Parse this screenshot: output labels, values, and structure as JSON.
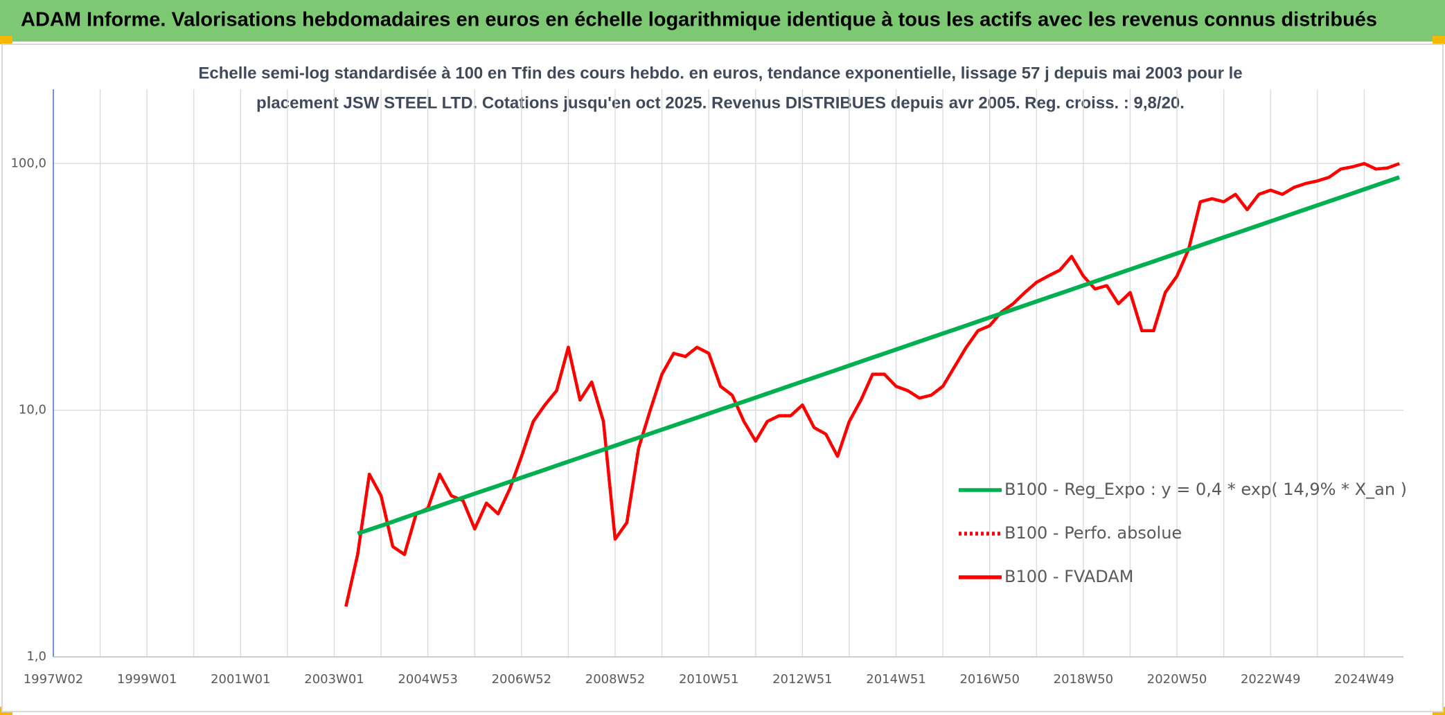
{
  "chart_data": {
    "type": "line",
    "title": "ADAM Informe. Valorisations hebdomadaires en euros en échelle logarithmique identique à tous les actifs avec les revenus connus distribués",
    "subtitle": [
      "Echelle semi-log standardisée à 100 en Tfin des cours hebdo. en euros, tendance exponentielle, lissage 57 j depuis mai 2003 pour le",
      "placement JSW STEEL LTD. Cotations jusqu'en oct 2025. Revenus DISTRIBUES depuis avr 2005. Reg. croiss. : 9,8/20."
    ],
    "categories": [
      "1997W02",
      null,
      null,
      null,
      null,
      null,
      null,
      null,
      "1999W01",
      null,
      null,
      null,
      null,
      null,
      null,
      null,
      "2001W01",
      null,
      null,
      null,
      null,
      null,
      null,
      null,
      "2003W01",
      null,
      null,
      null,
      null,
      null,
      null,
      null,
      "2004W53",
      null,
      null,
      null,
      null,
      null,
      null,
      null,
      "2006W52",
      null,
      null,
      null,
      null,
      null,
      null,
      null,
      "2008W52",
      null,
      null,
      null,
      null,
      null,
      null,
      null,
      "2010W51",
      null,
      null,
      null,
      null,
      null,
      null,
      null,
      "2012W51",
      null,
      null,
      null,
      null,
      null,
      null,
      null,
      "2014W51",
      null,
      null,
      null,
      null,
      null,
      null,
      null,
      "2016W50",
      null,
      null,
      null,
      null,
      null,
      null,
      null,
      "2018W50",
      null,
      null,
      null,
      null,
      null,
      null,
      null,
      "2020W50",
      null,
      null,
      null,
      null,
      null,
      null,
      null,
      "2022W49",
      null,
      null,
      null,
      null,
      null,
      null,
      null,
      "2024W49",
      null,
      null,
      null
    ],
    "log_scale": true,
    "grid": true,
    "legend": "right",
    "ylim": [
      1,
      200
    ],
    "yticks": [
      {
        "value": 1,
        "label": "1,0"
      },
      {
        "value": 10,
        "label": "10,0"
      },
      {
        "value": 100,
        "label": "100,0"
      }
    ],
    "series": [
      {
        "name": "B100 - Reg_Expo : y = 0,4 * exp( 14,9% *  X_an )",
        "color": "#00b050",
        "style": "solid",
        "values": [
          null,
          null,
          null,
          null,
          null,
          null,
          null,
          null,
          null,
          null,
          null,
          null,
          null,
          null,
          null,
          null,
          null,
          null,
          null,
          null,
          null,
          null,
          null,
          null,
          null,
          null,
          3.16,
          3.28,
          3.4,
          3.53,
          3.67,
          3.81,
          3.95,
          4.1,
          4.26,
          4.42,
          4.59,
          4.76,
          4.94,
          5.13,
          5.33,
          5.53,
          5.74,
          5.96,
          6.19,
          6.42,
          6.67,
          6.92,
          7.18,
          7.46,
          7.74,
          8.04,
          8.34,
          8.66,
          8.99,
          9.33,
          9.69,
          10.06,
          10.44,
          10.84,
          11.25,
          11.68,
          12.13,
          12.59,
          13.07,
          13.56,
          14.08,
          14.62,
          15.17,
          15.75,
          16.35,
          16.97,
          17.62,
          18.29,
          18.99,
          19.71,
          20.46,
          21.24,
          22.05,
          22.89,
          23.76,
          24.67,
          25.61,
          26.58,
          27.6,
          28.65,
          29.74,
          30.87,
          32.05,
          33.27,
          34.54,
          35.85,
          37.22,
          38.64,
          40.11,
          41.64,
          43.22,
          44.87,
          46.58,
          48.36,
          50.2,
          52.11,
          54.1,
          56.16,
          58.3,
          60.52,
          62.83,
          65.22,
          67.7,
          70.28,
          72.96,
          75.74,
          78.62,
          81.62,
          84.73,
          87.96
        ]
      },
      {
        "name": "B100 - Perfo. absolue",
        "color": "#ff0000",
        "style": "dotted",
        "values": [
          null,
          null,
          null,
          null,
          null,
          null,
          null,
          null,
          null,
          null,
          null,
          null,
          null,
          null,
          null,
          null,
          null,
          null,
          null,
          null,
          null,
          null,
          null,
          null,
          null,
          1.6,
          2.6,
          5.5,
          4.5,
          2.8,
          2.6,
          3.8,
          4.0,
          5.5,
          4.5,
          4.3,
          3.3,
          4.2,
          3.8,
          4.8,
          6.5,
          9.0,
          10.5,
          12,
          18,
          11,
          13,
          9,
          3.0,
          3.5,
          7,
          10,
          14,
          17,
          16.5,
          18,
          17,
          12.5,
          11.5,
          9,
          7.5,
          9,
          9.5,
          9.5,
          10.5,
          8.5,
          8,
          6.5,
          9,
          11,
          14,
          14,
          12.5,
          12,
          11.2,
          11.5,
          12.5,
          15,
          18,
          21,
          22,
          25,
          27,
          30,
          33,
          35,
          37,
          42,
          35,
          31,
          32,
          27,
          30,
          21,
          21,
          30,
          35,
          45,
          70,
          72,
          70,
          75,
          65,
          75,
          78,
          75,
          80,
          83,
          85,
          88,
          95,
          97,
          100,
          95,
          96,
          100
        ]
      },
      {
        "name": "B100 - FVADAM",
        "color": "#ff0000",
        "style": "solid",
        "values": [
          null,
          null,
          null,
          null,
          null,
          null,
          null,
          null,
          null,
          null,
          null,
          null,
          null,
          null,
          null,
          null,
          null,
          null,
          null,
          null,
          null,
          null,
          null,
          null,
          null,
          1.6,
          2.6,
          5.5,
          4.5,
          2.8,
          2.6,
          3.8,
          4.0,
          5.5,
          4.5,
          4.3,
          3.3,
          4.2,
          3.8,
          4.8,
          6.5,
          9.0,
          10.5,
          12,
          18,
          11,
          13,
          9,
          3.0,
          3.5,
          7,
          10,
          14,
          17,
          16.5,
          18,
          17,
          12.5,
          11.5,
          9,
          7.5,
          9,
          9.5,
          9.5,
          10.5,
          8.5,
          8,
          6.5,
          9,
          11,
          14,
          14,
          12.5,
          12,
          11.2,
          11.5,
          12.5,
          15,
          18,
          21,
          22,
          25,
          27,
          30,
          33,
          35,
          37,
          42,
          35,
          31,
          32,
          27,
          30,
          21,
          21,
          30,
          35,
          45,
          70,
          72,
          70,
          75,
          65,
          75,
          78,
          75,
          80,
          83,
          85,
          88,
          95,
          97,
          100,
          95,
          96,
          100
        ]
      }
    ]
  }
}
